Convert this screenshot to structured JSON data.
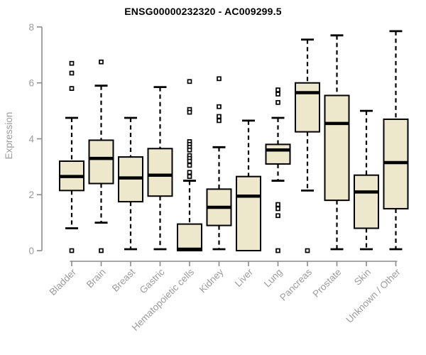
{
  "chart_data": {
    "type": "boxplot",
    "title": "ENSG00000232320 - AC009299.5",
    "ylabel": "Expression",
    "xlabel": "",
    "ylim": [
      0,
      8
    ],
    "yticks": [
      0,
      2,
      4,
      6,
      8
    ],
    "grid": false,
    "legend": null,
    "categories": [
      "Bladder",
      "Brain",
      "Breast",
      "Gastric",
      "Hematopoietic cells",
      "Kidney",
      "Liver",
      "Lung",
      "Pancreas",
      "Prostate",
      "Skin",
      "Unknown / Other"
    ],
    "boxes": [
      {
        "category": "Bladder",
        "whisker_low": 0.8,
        "q1": 2.15,
        "median": 2.65,
        "q3": 3.2,
        "whisker_high": 4.75,
        "outliers": [
          6.7,
          6.35,
          5.8,
          0
        ]
      },
      {
        "category": "Brain",
        "whisker_low": 1.0,
        "q1": 2.4,
        "median": 3.3,
        "q3": 3.95,
        "whisker_high": 5.9,
        "outliers": [
          6.75,
          0
        ]
      },
      {
        "category": "Breast",
        "whisker_low": 0.05,
        "q1": 1.75,
        "median": 2.6,
        "q3": 3.35,
        "whisker_high": 4.75,
        "outliers": []
      },
      {
        "category": "Gastric",
        "whisker_low": 0.05,
        "q1": 1.95,
        "median": 2.7,
        "q3": 3.65,
        "whisker_high": 5.85,
        "outliers": []
      },
      {
        "category": "Hematopoietic cells",
        "whisker_low": 0,
        "q1": 0,
        "median": 0.05,
        "q3": 0.95,
        "whisker_high": 2.5,
        "outliers": [
          6.05,
          5.05,
          4.95,
          3.9,
          3.8,
          3.7,
          3.6,
          3.4,
          3.3,
          3.2,
          3.05,
          2.8,
          2.65
        ]
      },
      {
        "category": "Kidney",
        "whisker_low": 0.05,
        "q1": 0.9,
        "median": 1.55,
        "q3": 2.2,
        "whisker_high": 3.7,
        "outliers": [
          6.15,
          5.15,
          4.8,
          4.65
        ]
      },
      {
        "category": "Liver",
        "whisker_low": 0,
        "q1": 0,
        "median": 1.95,
        "q3": 2.65,
        "whisker_high": 4.65,
        "outliers": []
      },
      {
        "category": "Lung",
        "whisker_low": 2.5,
        "q1": 3.1,
        "median": 3.6,
        "q3": 3.8,
        "whisker_high": 4.75,
        "outliers": [
          5.75,
          5.6,
          5.3,
          1.65,
          1.5,
          1.25,
          0
        ]
      },
      {
        "category": "Pancreas",
        "whisker_low": 2.15,
        "q1": 4.25,
        "median": 5.65,
        "q3": 6.0,
        "whisker_high": 7.55,
        "outliers": [
          0
        ]
      },
      {
        "category": "Prostate",
        "whisker_low": 0.05,
        "q1": 1.8,
        "median": 4.55,
        "q3": 5.55,
        "whisker_high": 7.7,
        "outliers": []
      },
      {
        "category": "Skin",
        "whisker_low": 0.05,
        "q1": 0.8,
        "median": 2.1,
        "q3": 2.7,
        "whisker_high": 5.0,
        "outliers": []
      },
      {
        "category": "Unknown / Other",
        "whisker_low": 0.05,
        "q1": 1.5,
        "median": 3.15,
        "q3": 4.7,
        "whisker_high": 7.85,
        "outliers": []
      }
    ],
    "colors": {
      "box_fill": "#EDE7CC",
      "box_border": "#000000",
      "median": "#000000",
      "whisker": "#000000",
      "outlier_fill": "#FFFFFF",
      "axis_line": "#8C8C8C",
      "axis_text": "#9B9B9B",
      "title_text": "#000000",
      "background": "#FFFFFF"
    }
  }
}
